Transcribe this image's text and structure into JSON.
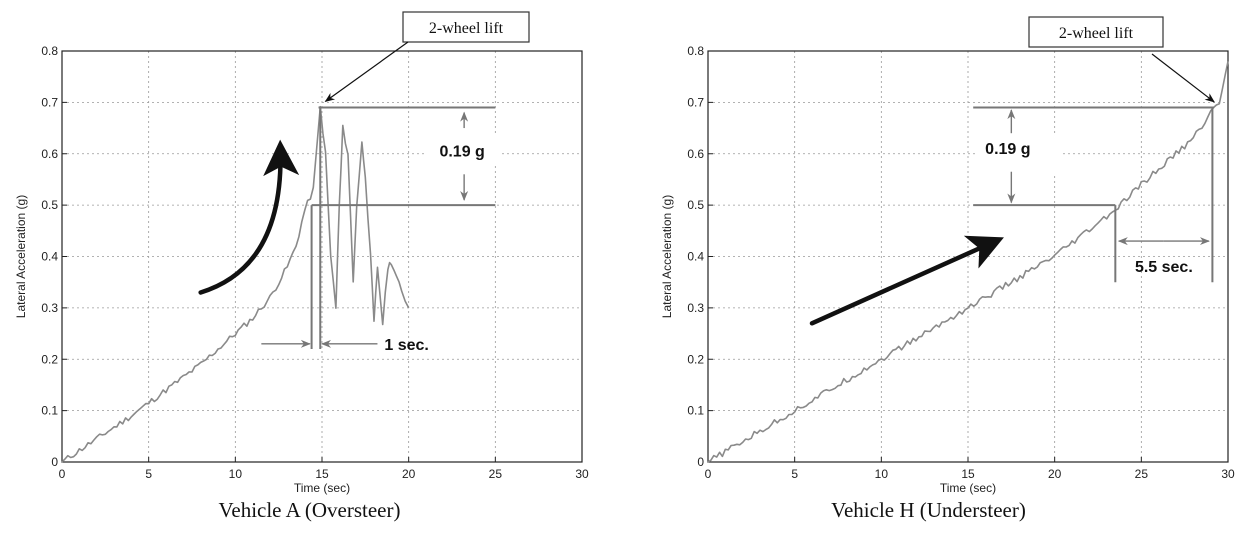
{
  "chart_data": [
    {
      "type": "line",
      "caption": "Vehicle A (Oversteer)",
      "xlabel": "Time (sec)",
      "ylabel": "Lateral Acceleration (g)",
      "xlim": [
        0,
        30
      ],
      "ylim": [
        0,
        0.8
      ],
      "x_ticks": [
        "0",
        "5",
        "10",
        "15",
        "20",
        "25",
        "30"
      ],
      "y_ticks": [
        "0",
        "0.1",
        "0.2",
        "0.3",
        "0.4",
        "0.5",
        "0.6",
        "0.7",
        "0.8"
      ],
      "grid": true,
      "series": [
        {
          "points": [
            [
              0,
              0
            ],
            [
              2,
              0.045
            ],
            [
              4,
              0.09
            ],
            [
              6,
              0.14
            ],
            [
              8,
              0.19
            ],
            [
              10,
              0.25
            ],
            [
              11,
              0.28
            ],
            [
              12,
              0.32
            ],
            [
              13,
              0.38
            ],
            [
              13.5,
              0.42
            ],
            [
              14,
              0.49
            ],
            [
              14.5,
              0.53
            ],
            [
              14.9,
              0.69
            ],
            [
              15.2,
              0.6
            ],
            [
              15.5,
              0.4
            ],
            [
              15.8,
              0.3
            ],
            [
              16,
              0.5
            ],
            [
              16.2,
              0.65
            ],
            [
              16.5,
              0.6
            ],
            [
              16.8,
              0.35
            ],
            [
              17,
              0.5
            ],
            [
              17.3,
              0.62
            ],
            [
              17.5,
              0.56
            ],
            [
              17.8,
              0.4
            ],
            [
              18,
              0.27
            ],
            [
              18.2,
              0.38
            ],
            [
              18.5,
              0.27
            ],
            [
              18.8,
              0.38
            ],
            [
              19,
              0.39
            ],
            [
              19.3,
              0.36
            ],
            [
              19.6,
              0.33
            ],
            [
              20,
              0.3
            ]
          ]
        }
      ],
      "annotations": {
        "callout": "2-wheel lift",
        "delta_g": "0.19 g",
        "delta_t": "1 sec."
      }
    },
    {
      "type": "line",
      "caption": "Vehicle H (Understeer)",
      "xlabel": "Time (sec)",
      "ylabel": "Lateral Acceleration (g)",
      "xlim": [
        0,
        30
      ],
      "ylim": [
        0,
        0.8
      ],
      "x_ticks": [
        "0",
        "5",
        "10",
        "15",
        "20",
        "25",
        "30"
      ],
      "y_ticks": [
        "0",
        "0.1",
        "0.2",
        "0.3",
        "0.4",
        "0.5",
        "0.6",
        "0.7",
        "0.8"
      ],
      "grid": true,
      "series": [
        {
          "points": [
            [
              0,
              0
            ],
            [
              5,
              0.1
            ],
            [
              10,
              0.2
            ],
            [
              15,
              0.3
            ],
            [
              20,
              0.4
            ],
            [
              23.5,
              0.49
            ],
            [
              25,
              0.54
            ],
            [
              27,
              0.6
            ],
            [
              28,
              0.63
            ],
            [
              29,
              0.68
            ],
            [
              29.5,
              0.7
            ],
            [
              30,
              0.78
            ]
          ]
        }
      ],
      "annotations": {
        "callout": "2-wheel lift",
        "delta_g": "0.19 g",
        "delta_t": "5.5 sec."
      }
    }
  ],
  "colors": {
    "line": "#8a8a8a",
    "axis": "#222222",
    "grid": "#999999",
    "arrow": "#111111"
  }
}
